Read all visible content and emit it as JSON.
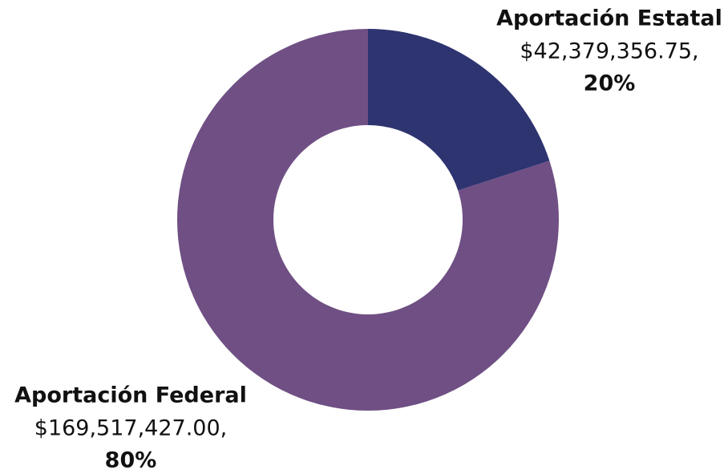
{
  "chart_data": {
    "type": "donut",
    "categories": [
      "Aportación Estatal",
      "Aportación Federal"
    ],
    "values": [
      42379356.75,
      169517427.0
    ],
    "value_labels": [
      "$42,379,356.75,",
      "$169,517,427.00,"
    ],
    "percent_labels": [
      "20%",
      "80%"
    ],
    "colors": [
      "#2e3470",
      "#6f4f84"
    ]
  }
}
